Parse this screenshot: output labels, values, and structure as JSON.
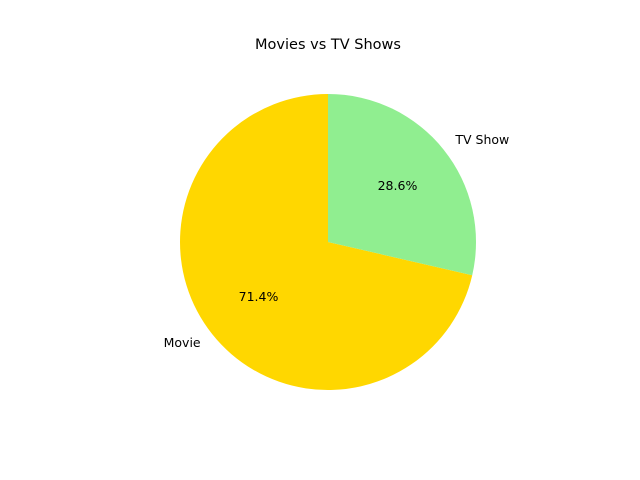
{
  "chart_data": {
    "type": "pie",
    "title": "Movies vs TV Shows",
    "categories": [
      "Movie",
      "TV Show"
    ],
    "values": [
      71.4,
      28.6
    ],
    "value_labels": [
      "71.4%",
      "28.6%"
    ],
    "colors": [
      "#ffd700",
      "#90ee90"
    ],
    "start_angle_deg": 90,
    "direction": "counterclockwise",
    "legend": "none"
  }
}
